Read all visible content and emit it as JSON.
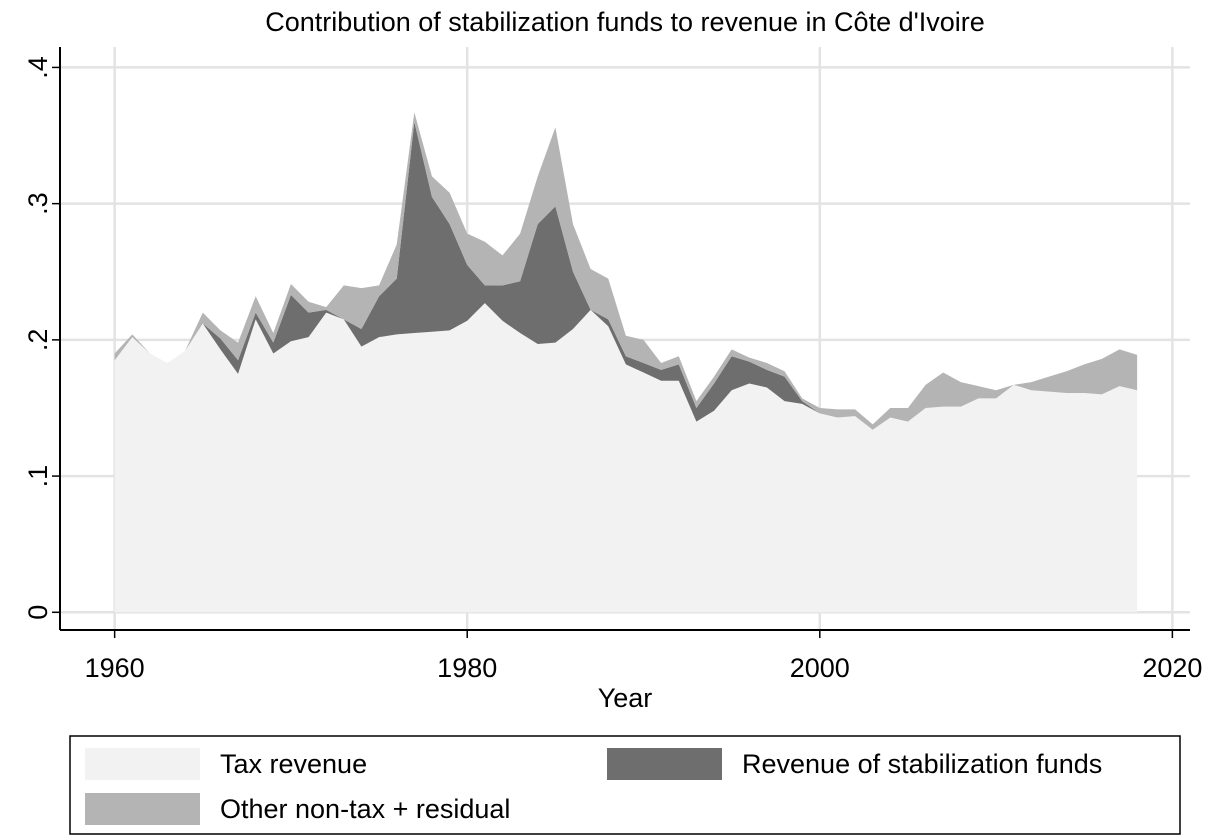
{
  "chart_data": {
    "type": "stacked_area",
    "title": "Contribution of stabilization funds to revenue in Côte d'Ivoire",
    "x_label": "Year",
    "x": [
      1960,
      1961,
      1962,
      1963,
      1964,
      1965,
      1966,
      1967,
      1968,
      1969,
      1970,
      1971,
      1972,
      1973,
      1974,
      1975,
      1976,
      1977,
      1978,
      1979,
      1980,
      1981,
      1982,
      1983,
      1984,
      1985,
      1986,
      1987,
      1988,
      1989,
      1990,
      1991,
      1992,
      1993,
      1994,
      1995,
      1996,
      1997,
      1998,
      1999,
      2000,
      2001,
      2002,
      2003,
      2004,
      2005,
      2006,
      2007,
      2008,
      2009,
      2010,
      2011,
      2012,
      2013,
      2014,
      2015,
      2016,
      2017,
      2018
    ],
    "series": [
      {
        "name": "Tax revenue",
        "color": "#f2f2f2",
        "values": [
          0.185,
          0.202,
          0.19,
          0.183,
          0.192,
          0.212,
          0.193,
          0.175,
          0.215,
          0.19,
          0.199,
          0.202,
          0.22,
          0.215,
          0.195,
          0.202,
          0.204,
          0.205,
          0.206,
          0.207,
          0.214,
          0.227,
          0.214,
          0.205,
          0.197,
          0.198,
          0.208,
          0.222,
          0.21,
          0.182,
          0.176,
          0.17,
          0.17,
          0.14,
          0.148,
          0.163,
          0.168,
          0.165,
          0.155,
          0.153,
          0.146,
          0.143,
          0.144,
          0.134,
          0.143,
          0.14,
          0.15,
          0.151,
          0.151,
          0.157,
          0.157,
          0.167,
          0.163,
          0.162,
          0.161,
          0.161,
          0.16,
          0.166,
          0.163
        ]
      },
      {
        "name": "Revenue of stabilization funds",
        "color": "#6e6e6e",
        "values": [
          0,
          0,
          0,
          0,
          0,
          0,
          0.008,
          0.01,
          0.005,
          0.008,
          0.034,
          0.018,
          0.002,
          0,
          0.013,
          0.03,
          0.041,
          0.155,
          0.099,
          0.078,
          0.041,
          0.013,
          0.026,
          0.038,
          0.088,
          0.1,
          0.042,
          0,
          0.005,
          0.006,
          0.007,
          0.008,
          0.012,
          0.01,
          0.02,
          0.025,
          0.016,
          0.013,
          0.018,
          0.002,
          0,
          0,
          0,
          0,
          0,
          0,
          0,
          0,
          0,
          0,
          0,
          0,
          0,
          0,
          0,
          0,
          0,
          0,
          0
        ]
      },
      {
        "name": "Other non-tax + residual",
        "color": "#b4b4b4",
        "values": [
          0.005,
          0.002,
          0,
          0,
          0,
          0.008,
          0.006,
          0.013,
          0.012,
          0.007,
          0.008,
          0.008,
          0.002,
          0.025,
          0.03,
          0.008,
          0.025,
          0.007,
          0.015,
          0.023,
          0.023,
          0.032,
          0.022,
          0.035,
          0.035,
          0.058,
          0.035,
          0.03,
          0.03,
          0.015,
          0.017,
          0.005,
          0.006,
          0.005,
          0.005,
          0.005,
          0.003,
          0.005,
          0.004,
          0.002,
          0.004,
          0.006,
          0.005,
          0.004,
          0.007,
          0.01,
          0.017,
          0.025,
          0.018,
          0.009,
          0.006,
          0,
          0.006,
          0.011,
          0.016,
          0.021,
          0.026,
          0.027,
          0.026
        ]
      }
    ],
    "xlim": [
      1956.9,
      2021
    ],
    "xticks": [
      1960,
      1980,
      2000,
      2020
    ],
    "ylim": [
      -0.013,
      0.415
    ],
    "yticks": [
      0,
      {
        "value": 0.1,
        "label": ".1"
      },
      {
        "value": 0.2,
        "label": ".2"
      },
      {
        "value": 0.3,
        "label": ".3"
      },
      {
        "value": 0.4,
        "label": ".4"
      }
    ],
    "grid": true
  }
}
